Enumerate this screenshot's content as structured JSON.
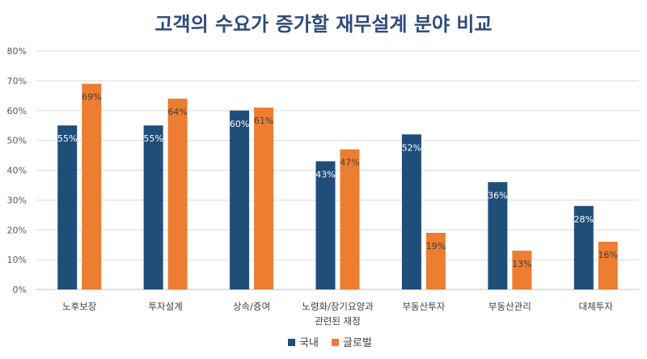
{
  "chart_data": {
    "type": "bar",
    "title": "고객의 수요가 증가할 재무설계 분야 비교",
    "xlabel": "",
    "ylabel": "",
    "ylim": [
      0,
      80
    ],
    "yticks": [
      "0%",
      "10%",
      "20%",
      "30%",
      "40%",
      "50%",
      "60%",
      "70%",
      "80%"
    ],
    "categories": [
      [
        "노후보장"
      ],
      [
        "투자설계"
      ],
      [
        "상속/증여"
      ],
      [
        "노령화/장기요양과",
        "관련된 재정"
      ],
      [
        "부동산투자"
      ],
      [
        "부동산관리"
      ],
      [
        "대체투자"
      ]
    ],
    "series": [
      {
        "name": "국내",
        "color": "#1f4e79",
        "values": [
          55,
          55,
          60,
          43,
          52,
          36,
          28
        ]
      },
      {
        "name": "글로벌",
        "color": "#ed7d31",
        "values": [
          69,
          64,
          61,
          47,
          19,
          13,
          16
        ]
      }
    ],
    "value_suffix": "%",
    "grid": true,
    "legend_position": "bottom"
  }
}
